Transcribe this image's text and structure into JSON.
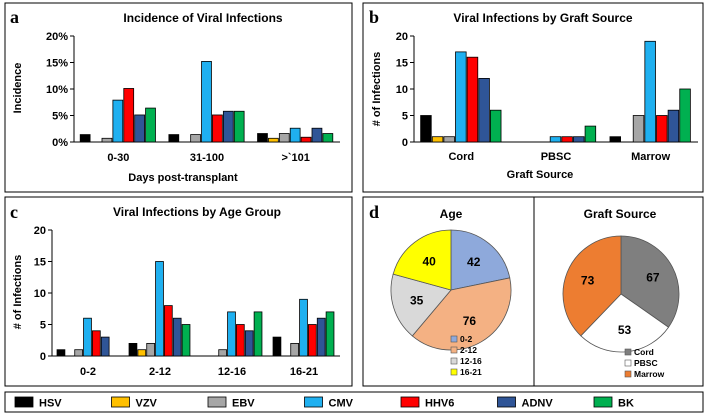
{
  "panels": {
    "a": {
      "letter": "a",
      "chart_data": {
        "type": "bar",
        "title": "Incidence of Viral Infections",
        "xlabel": "Days post-transplant",
        "ylabel": "Incidence",
        "categories": [
          "0-30",
          "31-100",
          ">`101"
        ],
        "ylim": [
          0,
          20
        ],
        "yticks": [
          "0%",
          "5%",
          "10%",
          "15%",
          "20%"
        ],
        "series": [
          {
            "name": "HSV",
            "values": [
              1.4,
              1.4,
              1.6
            ]
          },
          {
            "name": "VZV",
            "values": [
              0,
              0,
              0.7
            ]
          },
          {
            "name": "EBV",
            "values": [
              0.7,
              1.4,
              1.6
            ]
          },
          {
            "name": "CMV",
            "values": [
              7.9,
              15.2,
              2.6
            ]
          },
          {
            "name": "HHV6",
            "values": [
              10.1,
              5.1,
              0.9
            ]
          },
          {
            "name": "ADNV",
            "values": [
              5.1,
              5.8,
              2.6
            ]
          },
          {
            "name": "BK",
            "values": [
              6.4,
              5.8,
              1.6
            ]
          }
        ]
      }
    },
    "b": {
      "letter": "b",
      "chart_data": {
        "type": "bar",
        "title": "Viral Infections by Graft Source",
        "xlabel": "Graft Source",
        "ylabel": "# of Infections",
        "categories": [
          "Cord",
          "PBSC",
          "Marrow"
        ],
        "ylim": [
          0,
          20
        ],
        "yticks": [
          "0",
          "5",
          "10",
          "15",
          "20"
        ],
        "series": [
          {
            "name": "HSV",
            "values": [
              5,
              0,
              1
            ]
          },
          {
            "name": "VZV",
            "values": [
              1,
              0,
              0
            ]
          },
          {
            "name": "EBV",
            "values": [
              1,
              0,
              5
            ]
          },
          {
            "name": "CMV",
            "values": [
              17,
              1,
              19
            ]
          },
          {
            "name": "HHV6",
            "values": [
              16,
              1,
              5
            ]
          },
          {
            "name": "ADNV",
            "values": [
              12,
              1,
              6
            ]
          },
          {
            "name": "BK",
            "values": [
              6,
              3,
              10
            ]
          }
        ]
      }
    },
    "c": {
      "letter": "c",
      "chart_data": {
        "type": "bar",
        "title": "Viral Infections by Age Group",
        "xlabel": "",
        "ylabel": "# of Infections",
        "categories": [
          "0-2",
          "2-12",
          "12-16",
          "16-21"
        ],
        "ylim": [
          0,
          20
        ],
        "yticks": [
          "0",
          "5",
          "10",
          "15",
          "20"
        ],
        "series": [
          {
            "name": "HSV",
            "values": [
              1,
              2,
              0,
              3
            ]
          },
          {
            "name": "VZV",
            "values": [
              0,
              1,
              0,
              0
            ]
          },
          {
            "name": "EBV",
            "values": [
              1,
              2,
              1,
              2
            ]
          },
          {
            "name": "CMV",
            "values": [
              6,
              15,
              7,
              9
            ]
          },
          {
            "name": "HHV6",
            "values": [
              4,
              8,
              5,
              5
            ]
          },
          {
            "name": "ADNV",
            "values": [
              3,
              6,
              4,
              6
            ]
          },
          {
            "name": "BK",
            "values": [
              0,
              5,
              7,
              7
            ]
          }
        ]
      }
    },
    "d": {
      "letter": "d",
      "age": {
        "chart_data": {
          "type": "pie",
          "title": "Age",
          "labels": [
            "0-2",
            "2-12",
            "12-16",
            "16-21"
          ],
          "values": [
            42,
            76,
            35,
            40
          ],
          "colors": [
            "#8EA9DB",
            "#F4B183",
            "#D9D9D9",
            "#FFFF00"
          ]
        }
      },
      "graft": {
        "chart_data": {
          "type": "pie",
          "title": "Graft Source",
          "labels": [
            "Cord",
            "PBSC",
            "Marrow"
          ],
          "values": [
            67,
            53,
            73
          ],
          "colors": [
            "#7F7F7F",
            "#FFFFFF",
            "#ED7D31"
          ]
        }
      }
    }
  },
  "legend": [
    {
      "name": "HSV",
      "color": "#000000"
    },
    {
      "name": "VZV",
      "color": "#FFC000"
    },
    {
      "name": "EBV",
      "color": "#A6A6A6"
    },
    {
      "name": "CMV",
      "color": "#1FB0F0"
    },
    {
      "name": "HHV6",
      "color": "#FF0000"
    },
    {
      "name": "ADNV",
      "color": "#2F5597"
    },
    {
      "name": "BK",
      "color": "#00B050"
    }
  ]
}
